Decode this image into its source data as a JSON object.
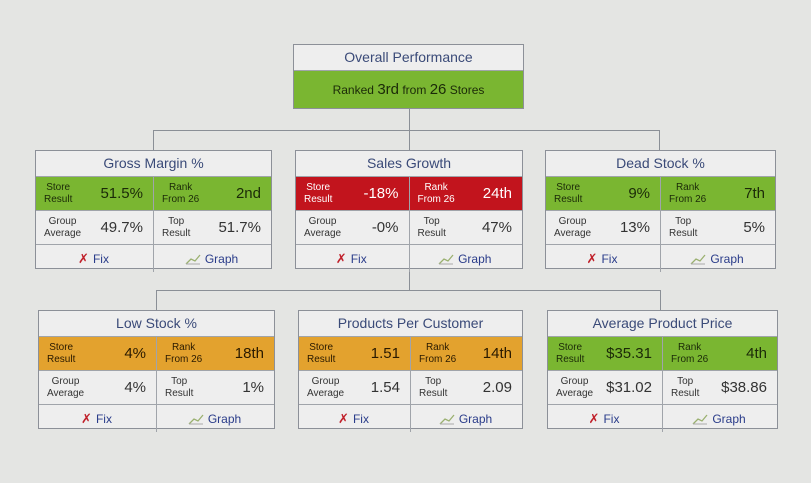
{
  "overall": {
    "title": "Overall Performance",
    "prefix": "Ranked",
    "rank": "3rd",
    "middle": "from",
    "count": "26",
    "suffix": "Stores",
    "color": "#7ab631"
  },
  "labels": {
    "store": "Store Result",
    "rank": "Rank From 26",
    "group": "Group Average",
    "top": "Top Result",
    "fix": "Fix",
    "graph": "Graph"
  },
  "metrics": [
    {
      "title": "Gross Margin %",
      "status": "green",
      "store": "51.5%",
      "rank": "2nd",
      "group": "49.7%",
      "top": "51.7%"
    },
    {
      "title": "Sales Growth",
      "status": "red",
      "store": "-18%",
      "rank": "24th",
      "group": "-0%",
      "top": "47%"
    },
    {
      "title": "Dead Stock %",
      "status": "green",
      "store": "9%",
      "rank": "7th",
      "group": "13%",
      "top": "5%"
    },
    {
      "title": "Low Stock %",
      "status": "orange",
      "store": "4%",
      "rank": "18th",
      "group": "4%",
      "top": "1%"
    },
    {
      "title": "Products Per Customer",
      "status": "orange",
      "store": "1.51",
      "rank": "14th",
      "group": "1.54",
      "top": "2.09"
    },
    {
      "title": "Average Product Price",
      "status": "green",
      "store": "$35.31",
      "rank": "4th",
      "group": "$31.02",
      "top": "$38.86"
    }
  ],
  "colors": {
    "green": "#7ab631",
    "red": "#c2141d",
    "orange": "#e3a22e"
  }
}
